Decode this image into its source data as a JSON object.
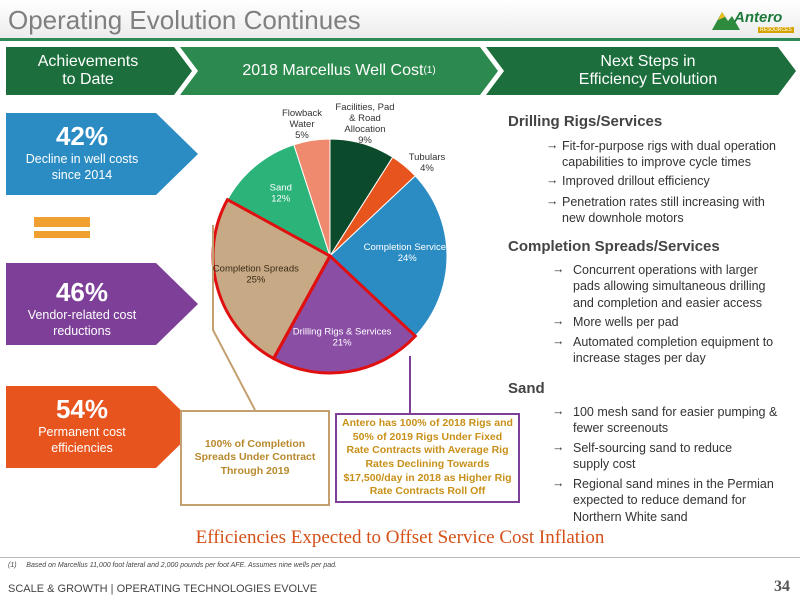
{
  "title": "Operating Evolution Continues",
  "logo": {
    "word": "Antero",
    "tag": "RESOURCES"
  },
  "chevrons": [
    {
      "label_line1": "Achievements",
      "label_line2": "to Date"
    },
    {
      "label": "2018 Marcellus Well Cost",
      "superscript": "(1)"
    },
    {
      "label_line1": "Next Steps in",
      "label_line2": "Efficiency Evolution"
    }
  ],
  "stats": [
    {
      "value": "42%",
      "desc_line1": "Decline in well costs",
      "desc_line2": "since 2014",
      "color": "#2b8cc4"
    },
    {
      "value": "46%",
      "desc_line1": "Vendor-related cost",
      "desc_line2": "reductions",
      "color": "#7d3f98"
    },
    {
      "value": "54%",
      "desc_line1": "Permanent cost",
      "desc_line2": "efficiencies",
      "color": "#e8541e"
    }
  ],
  "chart_data": {
    "type": "pie",
    "title": "2018 Marcellus Well Cost",
    "slices": [
      {
        "label_lines": [
          "Facilities, Pad",
          "& Road",
          "Allocation"
        ],
        "value": 9,
        "pct": "9%",
        "color": "#0b4a2a"
      },
      {
        "label_lines": [
          "Tubulars"
        ],
        "value": 4,
        "pct": "4%",
        "color": "#e8541e"
      },
      {
        "label_lines": [
          "Completion Services"
        ],
        "value": 24,
        "pct": "24%",
        "color": "#2b8cc4"
      },
      {
        "label_lines": [
          "Drilling Rigs & Services"
        ],
        "value": 21,
        "pct": "21%",
        "color": "#8a4ea5",
        "highlight": true
      },
      {
        "label_lines": [
          "Completion Spreads"
        ],
        "value": 25,
        "pct": "25%",
        "color": "#c7aa85",
        "highlight": true
      },
      {
        "label_lines": [
          "Sand"
        ],
        "value": 12,
        "pct": "12%",
        "color": "#2bb37a"
      },
      {
        "label_lines": [
          "Flowback",
          "Water"
        ],
        "value": 5,
        "pct": "5%",
        "color": "#ef8a6e"
      }
    ]
  },
  "callouts": {
    "left": [
      "100% of Completion",
      "Spreads Under Contract",
      "Through 2019"
    ],
    "right": [
      "Antero has 100% of 2018 Rigs and",
      "50% of 2019 Rigs Under Fixed",
      "Rate Contracts with Average Rig",
      "Rates Declining  Towards",
      "$17,500/day in 2018 as Higher Rig",
      "Rate Contracts Roll Off"
    ]
  },
  "sections": [
    {
      "heading": "Drilling Rigs/Services",
      "items": [
        {
          "arrow": "→",
          "lines": [
            "Fit-for-purpose rigs with dual operation",
            "capabilities to improve cycle times"
          ]
        },
        {
          "arrow": "→",
          "lines": [
            "Improved drillout efficiency"
          ]
        },
        {
          "arrow": "→",
          "lines": [
            "Penetration rates still increasing with",
            "new downhole motors"
          ]
        }
      ]
    },
    {
      "heading": "Completion Spreads/Services",
      "items": [
        {
          "arrow": "→",
          "lines": [
            "Concurrent operations with larger",
            "pads allowing simultaneous drilling",
            "and completion and easier access"
          ]
        },
        {
          "arrow": "→",
          "lines": [
            "More wells per pad"
          ]
        },
        {
          "arrow": "→",
          "lines": [
            "Automated completion equipment to",
            "increase stages per day"
          ]
        }
      ]
    },
    {
      "heading": "Sand",
      "items": [
        {
          "arrow": "→",
          "lines": [
            "100 mesh sand for easier pumping &",
            "fewer screenouts"
          ]
        },
        {
          "arrow": "→",
          "lines": [
            "Self-sourcing sand to reduce",
            "supply cost"
          ]
        },
        {
          "arrow": "→",
          "lines": [
            "Regional sand mines in the Permian",
            "expected to reduce demand for",
            "Northern White sand"
          ]
        }
      ]
    }
  ],
  "banner": "Efficiencies Expected to Offset Service Cost Inflation",
  "footnote_marker": "(1)",
  "footnote": "Based on Marcellus 11,000 foot lateral and 2,000 pounds per foot AFE.  Assumes nine wells per pad.",
  "footer": "SCALE & GROWTH | OPERATING TECHNOLOGIES EVOLVE",
  "page_number": "34"
}
